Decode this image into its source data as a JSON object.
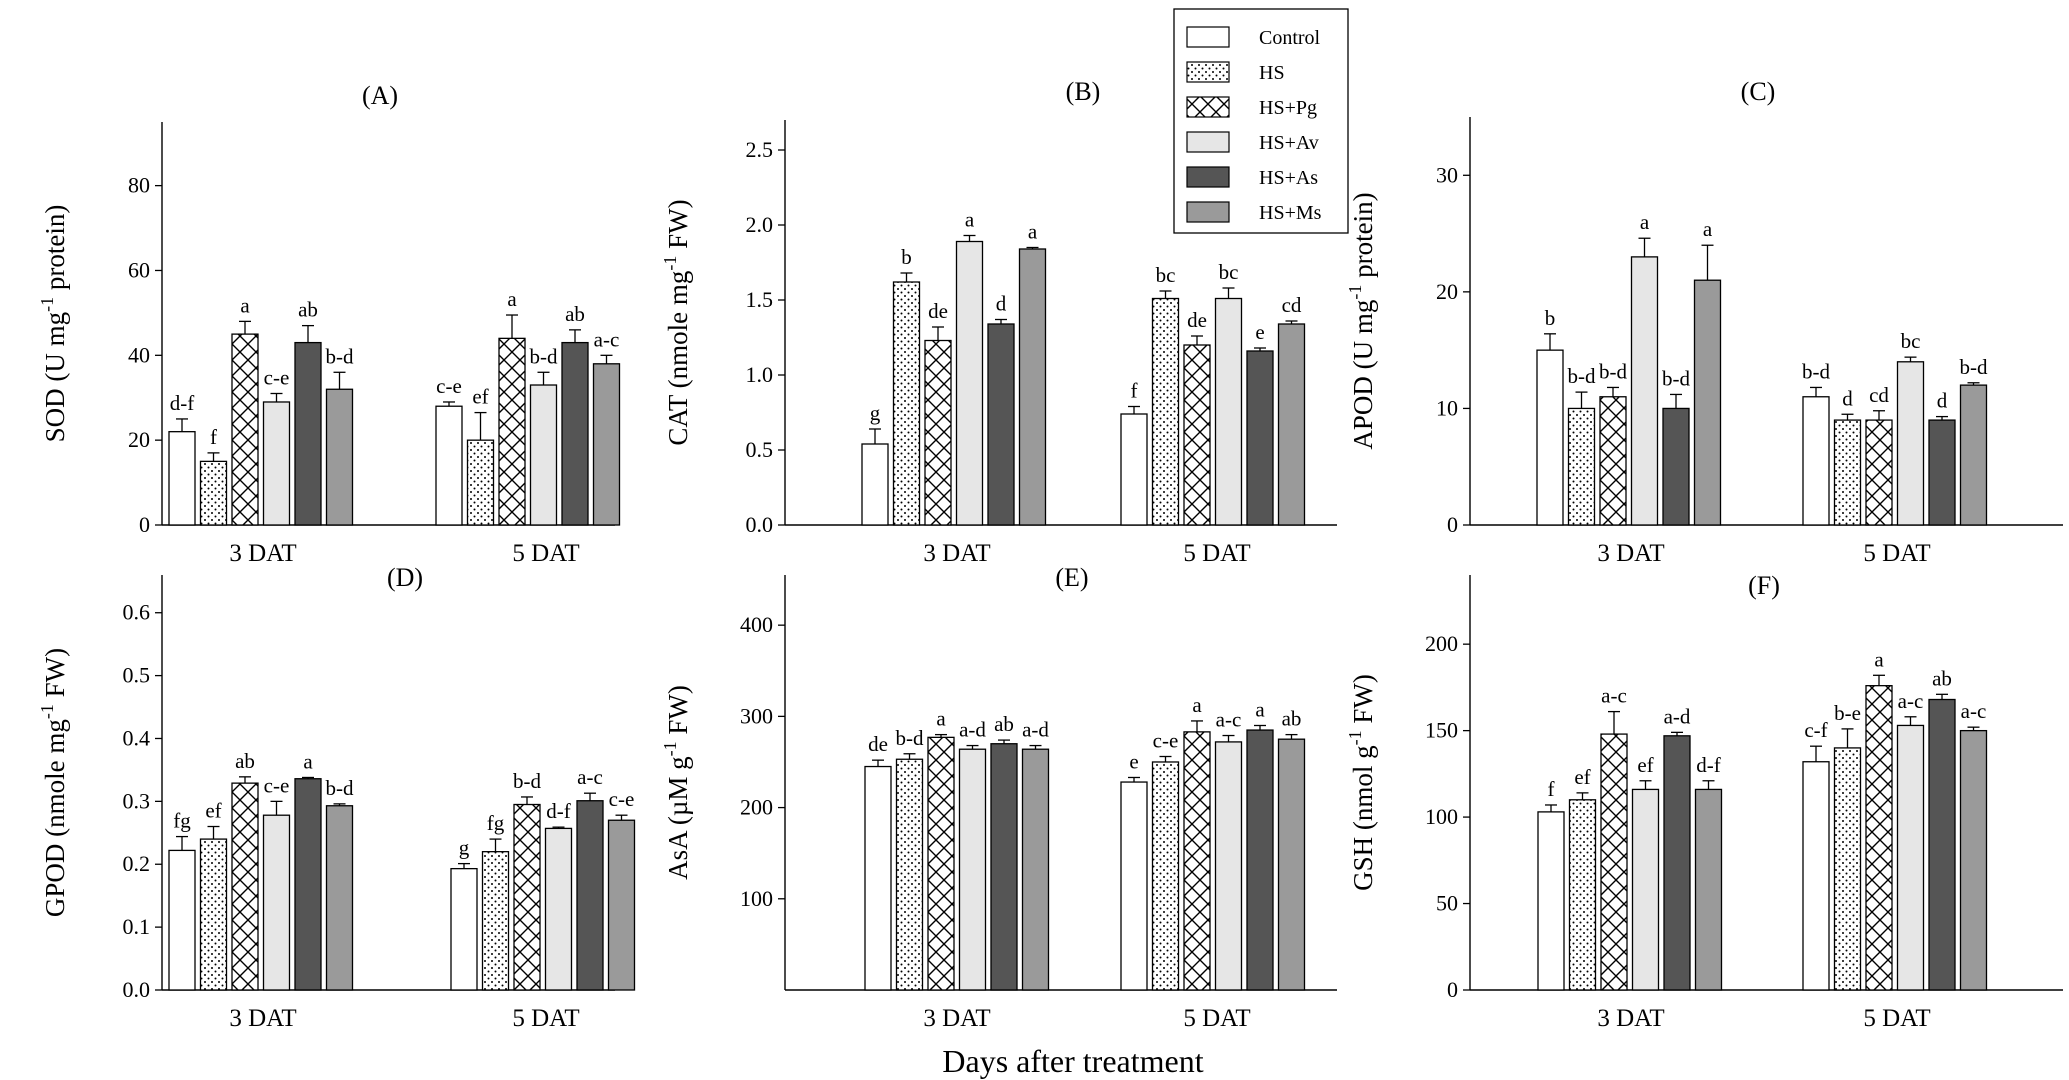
{
  "chart_data": {
    "type": "bar",
    "x_title": "Days after treatment",
    "groups": [
      "3 DAT",
      "5 DAT"
    ],
    "legend": {
      "placement": "top",
      "entries": [
        "Control",
        "HS",
        "HS+Pg",
        "HS+Av",
        "HS+As",
        "HS+Ms"
      ]
    },
    "series_colors": {
      "Control": "#ffffff",
      "HS": "#ffffff",
      "HS+Pg": "#ffffff",
      "HS+Av": "#e6e6e6",
      "HS+As": "#555555",
      "HS+Ms": "#9a9a9a"
    },
    "panels": [
      {
        "label": "(A)",
        "ylabel": "SOD (U mg-1 protein)",
        "ylabel_parts": {
          "pre": "SOD (U mg",
          "sup": "-1",
          "post": " protein)"
        },
        "ylim": [
          0,
          95
        ],
        "yticks": [
          0,
          20,
          40,
          60,
          80
        ],
        "series": [
          {
            "name": "Control",
            "values": [
              22,
              28
            ],
            "errors": [
              3,
              1
            ],
            "letters": [
              "d-f",
              "c-e"
            ]
          },
          {
            "name": "HS",
            "values": [
              15,
              20
            ],
            "errors": [
              2,
              6.5
            ],
            "letters": [
              "f",
              "ef"
            ]
          },
          {
            "name": "HS+Pg",
            "values": [
              45,
              44
            ],
            "errors": [
              3,
              5.5
            ],
            "letters": [
              "a",
              "a"
            ]
          },
          {
            "name": "HS+Av",
            "values": [
              29,
              33
            ],
            "errors": [
              2,
              3
            ],
            "letters": [
              "c-e",
              "b-d"
            ]
          },
          {
            "name": "HS+As",
            "values": [
              43,
              43
            ],
            "errors": [
              4,
              3
            ],
            "letters": [
              "ab",
              "ab"
            ]
          },
          {
            "name": "HS+Ms",
            "values": [
              32,
              38
            ],
            "errors": [
              4,
              2
            ],
            "letters": [
              "b-d",
              "a-c"
            ]
          }
        ]
      },
      {
        "label": "(B)",
        "ylabel": "CAT (nmole mg-1 FW)",
        "ylabel_parts": {
          "pre": "CAT (nmole mg",
          "sup": "-1",
          "post": " FW)"
        },
        "ylim": [
          0,
          2.7
        ],
        "yticks": [
          0.0,
          0.5,
          1.0,
          1.5,
          2.0,
          2.5
        ],
        "series": [
          {
            "name": "Control",
            "values": [
              0.54,
              0.74
            ],
            "errors": [
              0.1,
              0.05
            ],
            "letters": [
              "g",
              "f"
            ]
          },
          {
            "name": "HS",
            "values": [
              1.62,
              1.51
            ],
            "errors": [
              0.06,
              0.05
            ],
            "letters": [
              "b",
              "bc"
            ]
          },
          {
            "name": "HS+Pg",
            "values": [
              1.23,
              1.2
            ],
            "errors": [
              0.09,
              0.06
            ],
            "letters": [
              "de",
              "de"
            ]
          },
          {
            "name": "HS+Av",
            "values": [
              1.89,
              1.51
            ],
            "errors": [
              0.04,
              0.07
            ],
            "letters": [
              "a",
              "bc"
            ]
          },
          {
            "name": "HS+As",
            "values": [
              1.34,
              1.16
            ],
            "errors": [
              0.03,
              0.02
            ],
            "letters": [
              "d",
              "e"
            ]
          },
          {
            "name": "HS+Ms",
            "values": [
              1.84,
              1.34
            ],
            "errors": [
              0.01,
              0.02
            ],
            "letters": [
              "a",
              "cd"
            ]
          }
        ]
      },
      {
        "label": "(C)",
        "ylabel": "APOD (U mg-1 protein)",
        "ylabel_parts": {
          "pre": "APOD (U mg",
          "sup": "-1",
          "post": " protein)"
        },
        "ylim": [
          0,
          35
        ],
        "yticks": [
          0,
          10,
          20,
          30
        ],
        "series": [
          {
            "name": "Control",
            "values": [
              15,
              11
            ],
            "errors": [
              1.4,
              0.8
            ],
            "letters": [
              "b",
              "b-d"
            ]
          },
          {
            "name": "HS",
            "values": [
              10,
              9
            ],
            "errors": [
              1.4,
              0.5
            ],
            "letters": [
              "b-d",
              "d"
            ]
          },
          {
            "name": "HS+Pg",
            "values": [
              11,
              9
            ],
            "errors": [
              0.8,
              0.8
            ],
            "letters": [
              "b-d",
              "cd"
            ]
          },
          {
            "name": "HS+Av",
            "values": [
              23,
              14
            ],
            "errors": [
              1.6,
              0.4
            ],
            "letters": [
              "a",
              "bc"
            ]
          },
          {
            "name": "HS+As",
            "values": [
              10,
              9
            ],
            "errors": [
              1.2,
              0.3
            ],
            "letters": [
              "b-d",
              "d"
            ]
          },
          {
            "name": "HS+Ms",
            "values": [
              21,
              12
            ],
            "errors": [
              3,
              0.2
            ],
            "letters": [
              "a",
              "b-d"
            ]
          }
        ]
      },
      {
        "label": "(D)",
        "ylabel": "GPOD (nmole mg-1 FW)",
        "ylabel_parts": {
          "pre": "GPOD (nmole mg",
          "sup": "-1",
          "post": " FW)"
        },
        "ylim": [
          0,
          0.66
        ],
        "yticks": [
          0.0,
          0.1,
          0.2,
          0.3,
          0.4,
          0.5,
          0.6
        ],
        "series": [
          {
            "name": "Control",
            "values": [
              0.222,
              0.193
            ],
            "errors": [
              0.022,
              0.008
            ],
            "letters": [
              "fg",
              "g"
            ]
          },
          {
            "name": "HS",
            "values": [
              0.24,
              0.22
            ],
            "errors": [
              0.02,
              0.02
            ],
            "letters": [
              "ef",
              "fg"
            ]
          },
          {
            "name": "HS+Pg",
            "values": [
              0.329,
              0.295
            ],
            "errors": [
              0.01,
              0.012
            ],
            "letters": [
              "ab",
              "b-d"
            ]
          },
          {
            "name": "HS+Av",
            "values": [
              0.278,
              0.257
            ],
            "errors": [
              0.022,
              0.002
            ],
            "letters": [
              "c-e",
              "d-f"
            ]
          },
          {
            "name": "HS+As",
            "values": [
              0.336,
              0.301
            ],
            "errors": [
              0.002,
              0.012
            ],
            "letters": [
              "a",
              "a-c"
            ]
          },
          {
            "name": "HS+Ms",
            "values": [
              0.293,
              0.27
            ],
            "errors": [
              0.003,
              0.008
            ],
            "letters": [
              "b-d",
              "c-e"
            ]
          }
        ]
      },
      {
        "label": "(E)",
        "ylabel": "AsA (µM g-1 FW)",
        "ylabel_parts": {
          "pre": "AsA (µM g",
          "sup": "-1",
          "post": " FW)"
        },
        "ylim": [
          0,
          455
        ],
        "yticks": [
          100,
          200,
          300,
          400
        ],
        "series": [
          {
            "name": "Control",
            "values": [
              245,
              228
            ],
            "errors": [
              7,
              5
            ],
            "letters": [
              "de",
              "e"
            ]
          },
          {
            "name": "HS",
            "values": [
              253,
              250
            ],
            "errors": [
              6,
              6
            ],
            "letters": [
              "b-d",
              "c-e"
            ]
          },
          {
            "name": "HS+Pg",
            "values": [
              277,
              283
            ],
            "errors": [
              3,
              12
            ],
            "letters": [
              "a",
              "a"
            ]
          },
          {
            "name": "HS+Av",
            "values": [
              264,
              272
            ],
            "errors": [
              4,
              7
            ],
            "letters": [
              "a-d",
              "a-c"
            ]
          },
          {
            "name": "HS+As",
            "values": [
              270,
              285
            ],
            "errors": [
              4,
              5
            ],
            "letters": [
              "ab",
              "a"
            ]
          },
          {
            "name": "HS+Ms",
            "values": [
              264,
              275
            ],
            "errors": [
              4,
              5
            ],
            "letters": [
              "a-d",
              "ab"
            ]
          }
        ]
      },
      {
        "label": "(F)",
        "ylabel": "GSH (nmol g-1 FW)",
        "ylabel_parts": {
          "pre": "GSH (nmol g",
          "sup": "-1",
          "post": " FW)"
        },
        "ylim": [
          0,
          240
        ],
        "yticks": [
          0,
          50,
          100,
          150,
          200
        ],
        "series": [
          {
            "name": "Control",
            "values": [
              103,
              132
            ],
            "errors": [
              4,
              9
            ],
            "letters": [
              "f",
              "c-f"
            ]
          },
          {
            "name": "HS",
            "values": [
              110,
              140
            ],
            "errors": [
              4,
              11
            ],
            "letters": [
              "ef",
              "b-e"
            ]
          },
          {
            "name": "HS+Pg",
            "values": [
              148,
              176
            ],
            "errors": [
              13,
              6
            ],
            "letters": [
              "a-c",
              "a"
            ]
          },
          {
            "name": "HS+Av",
            "values": [
              116,
              153
            ],
            "errors": [
              5,
              5
            ],
            "letters": [
              "ef",
              "a-c"
            ]
          },
          {
            "name": "HS+As",
            "values": [
              147,
              168
            ],
            "errors": [
              2,
              3
            ],
            "letters": [
              "a-d",
              "ab"
            ]
          },
          {
            "name": "HS+Ms",
            "values": [
              116,
              150
            ],
            "errors": [
              5,
              2
            ],
            "letters": [
              "d-f",
              "a-c"
            ]
          }
        ]
      }
    ]
  }
}
